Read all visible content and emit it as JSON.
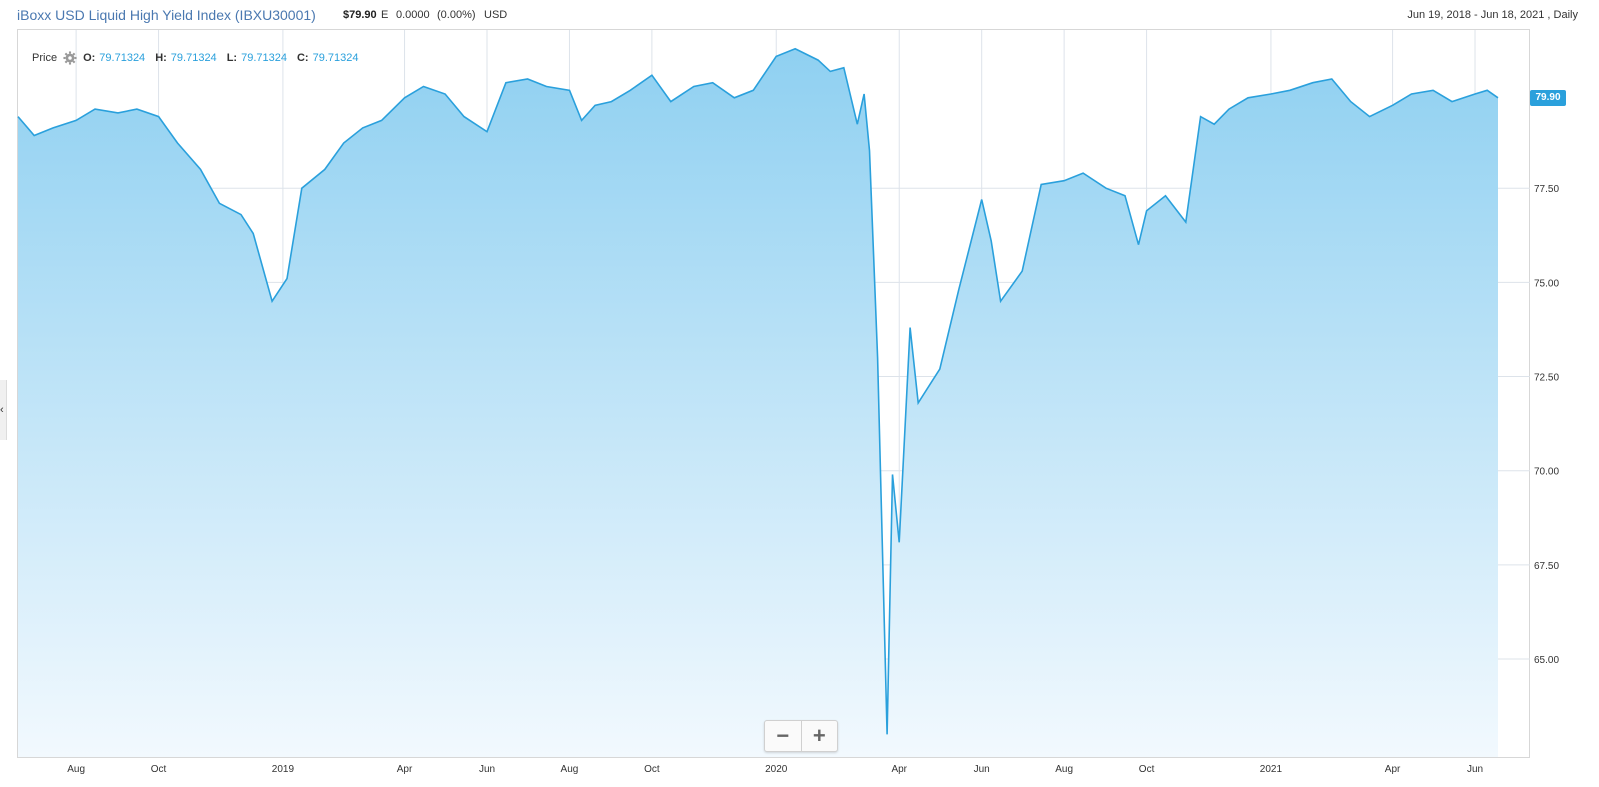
{
  "header": {
    "title": "iBoxx USD Liquid High Yield Index (IBXU30001)",
    "price": "$79.90",
    "price_flag": "E",
    "change": "0.0000",
    "change_pct": "(0.00%)",
    "currency": "USD",
    "date_range": "Jun 19, 2018 - Jun 18, 2021 , Daily"
  },
  "legend": {
    "label": "Price",
    "settings_icon": "gear-icon",
    "open_key": "O:",
    "open": "79.71324",
    "high_key": "H:",
    "high": "79.71324",
    "low_key": "L:",
    "low": "79.71324",
    "close_key": "C:",
    "close": "79.71324"
  },
  "last_value_badge": "79.90",
  "zoom": {
    "minus_icon": "minus-icon",
    "plus_icon": "plus-icon"
  },
  "colors": {
    "line": "#2aa0dc",
    "fill_top": "#8fd0f1",
    "fill_bottom": "#f2f9fe",
    "badge": "#2aa0dc"
  },
  "chart_data": {
    "type": "area",
    "title": "iBoxx USD Liquid High Yield Index (IBXU30001)",
    "y_ticks": [
      "65.00",
      "67.50",
      "70.00",
      "72.50",
      "75.00",
      "77.50"
    ],
    "ylim": [
      62.4,
      81.7
    ],
    "x_ticks": [
      "Aug",
      "Oct",
      "2019",
      "Apr",
      "Jun",
      "Aug",
      "Oct",
      "2020",
      "Apr",
      "Jun",
      "Aug",
      "Oct",
      "2021",
      "Apr",
      "Jun"
    ],
    "grid": true,
    "series": [
      {
        "x": [
          "2018-06-19",
          "2018-07-01",
          "2018-07-15",
          "2018-08-01",
          "2018-08-15",
          "2018-09-01",
          "2018-09-15",
          "2018-10-01",
          "2018-10-15",
          "2018-11-01",
          "2018-11-15",
          "2018-12-01",
          "2018-12-10",
          "2018-12-24",
          "2019-01-04",
          "2019-01-15",
          "2019-02-01",
          "2019-02-15",
          "2019-03-01",
          "2019-03-15",
          "2019-04-01",
          "2019-04-15",
          "2019-05-01",
          "2019-05-15",
          "2019-06-01",
          "2019-06-15",
          "2019-07-01",
          "2019-07-15",
          "2019-08-01",
          "2019-08-10",
          "2019-08-20",
          "2019-09-01",
          "2019-09-15",
          "2019-10-01",
          "2019-10-15",
          "2019-11-01",
          "2019-11-15",
          "2019-12-01",
          "2019-12-15",
          "2020-01-01",
          "2020-01-15",
          "2020-02-01",
          "2020-02-10",
          "2020-02-20",
          "2020-03-01",
          "2020-03-06",
          "2020-03-10",
          "2020-03-16",
          "2020-03-23",
          "2020-03-27",
          "2020-04-01",
          "2020-04-09",
          "2020-04-15",
          "2020-05-01",
          "2020-05-15",
          "2020-06-01",
          "2020-06-08",
          "2020-06-15",
          "2020-07-01",
          "2020-07-15",
          "2020-08-01",
          "2020-08-15",
          "2020-09-01",
          "2020-09-15",
          "2020-09-25",
          "2020-10-01",
          "2020-10-15",
          "2020-10-30",
          "2020-11-10",
          "2020-11-20",
          "2020-12-01",
          "2020-12-15",
          "2021-01-01",
          "2021-01-15",
          "2021-02-01",
          "2021-02-15",
          "2021-03-01",
          "2021-03-15",
          "2021-04-01",
          "2021-04-15",
          "2021-05-01",
          "2021-05-15",
          "2021-06-01",
          "2021-06-10",
          "2021-06-18"
        ],
        "values": [
          79.4,
          78.9,
          79.1,
          79.3,
          79.6,
          79.5,
          79.6,
          79.4,
          78.7,
          78.0,
          77.1,
          76.8,
          76.3,
          74.5,
          75.1,
          77.5,
          78.0,
          78.7,
          79.1,
          79.3,
          79.9,
          80.2,
          80.0,
          79.4,
          79.0,
          80.3,
          80.4,
          80.2,
          80.1,
          79.3,
          79.7,
          79.8,
          80.1,
          80.5,
          79.8,
          80.2,
          80.3,
          79.9,
          80.1,
          81.0,
          81.2,
          80.9,
          80.6,
          80.7,
          79.2,
          80.0,
          78.5,
          73.0,
          63.0,
          69.9,
          68.1,
          73.8,
          71.8,
          72.7,
          74.8,
          77.2,
          76.1,
          74.5,
          75.3,
          77.6,
          77.7,
          77.9,
          77.5,
          77.3,
          76.0,
          76.9,
          77.3,
          76.6,
          79.4,
          79.2,
          79.6,
          79.9,
          80.0,
          80.1,
          80.3,
          80.4,
          79.8,
          79.4,
          79.7,
          80.0,
          80.1,
          79.8,
          80.0,
          80.1,
          79.9
        ]
      }
    ]
  }
}
